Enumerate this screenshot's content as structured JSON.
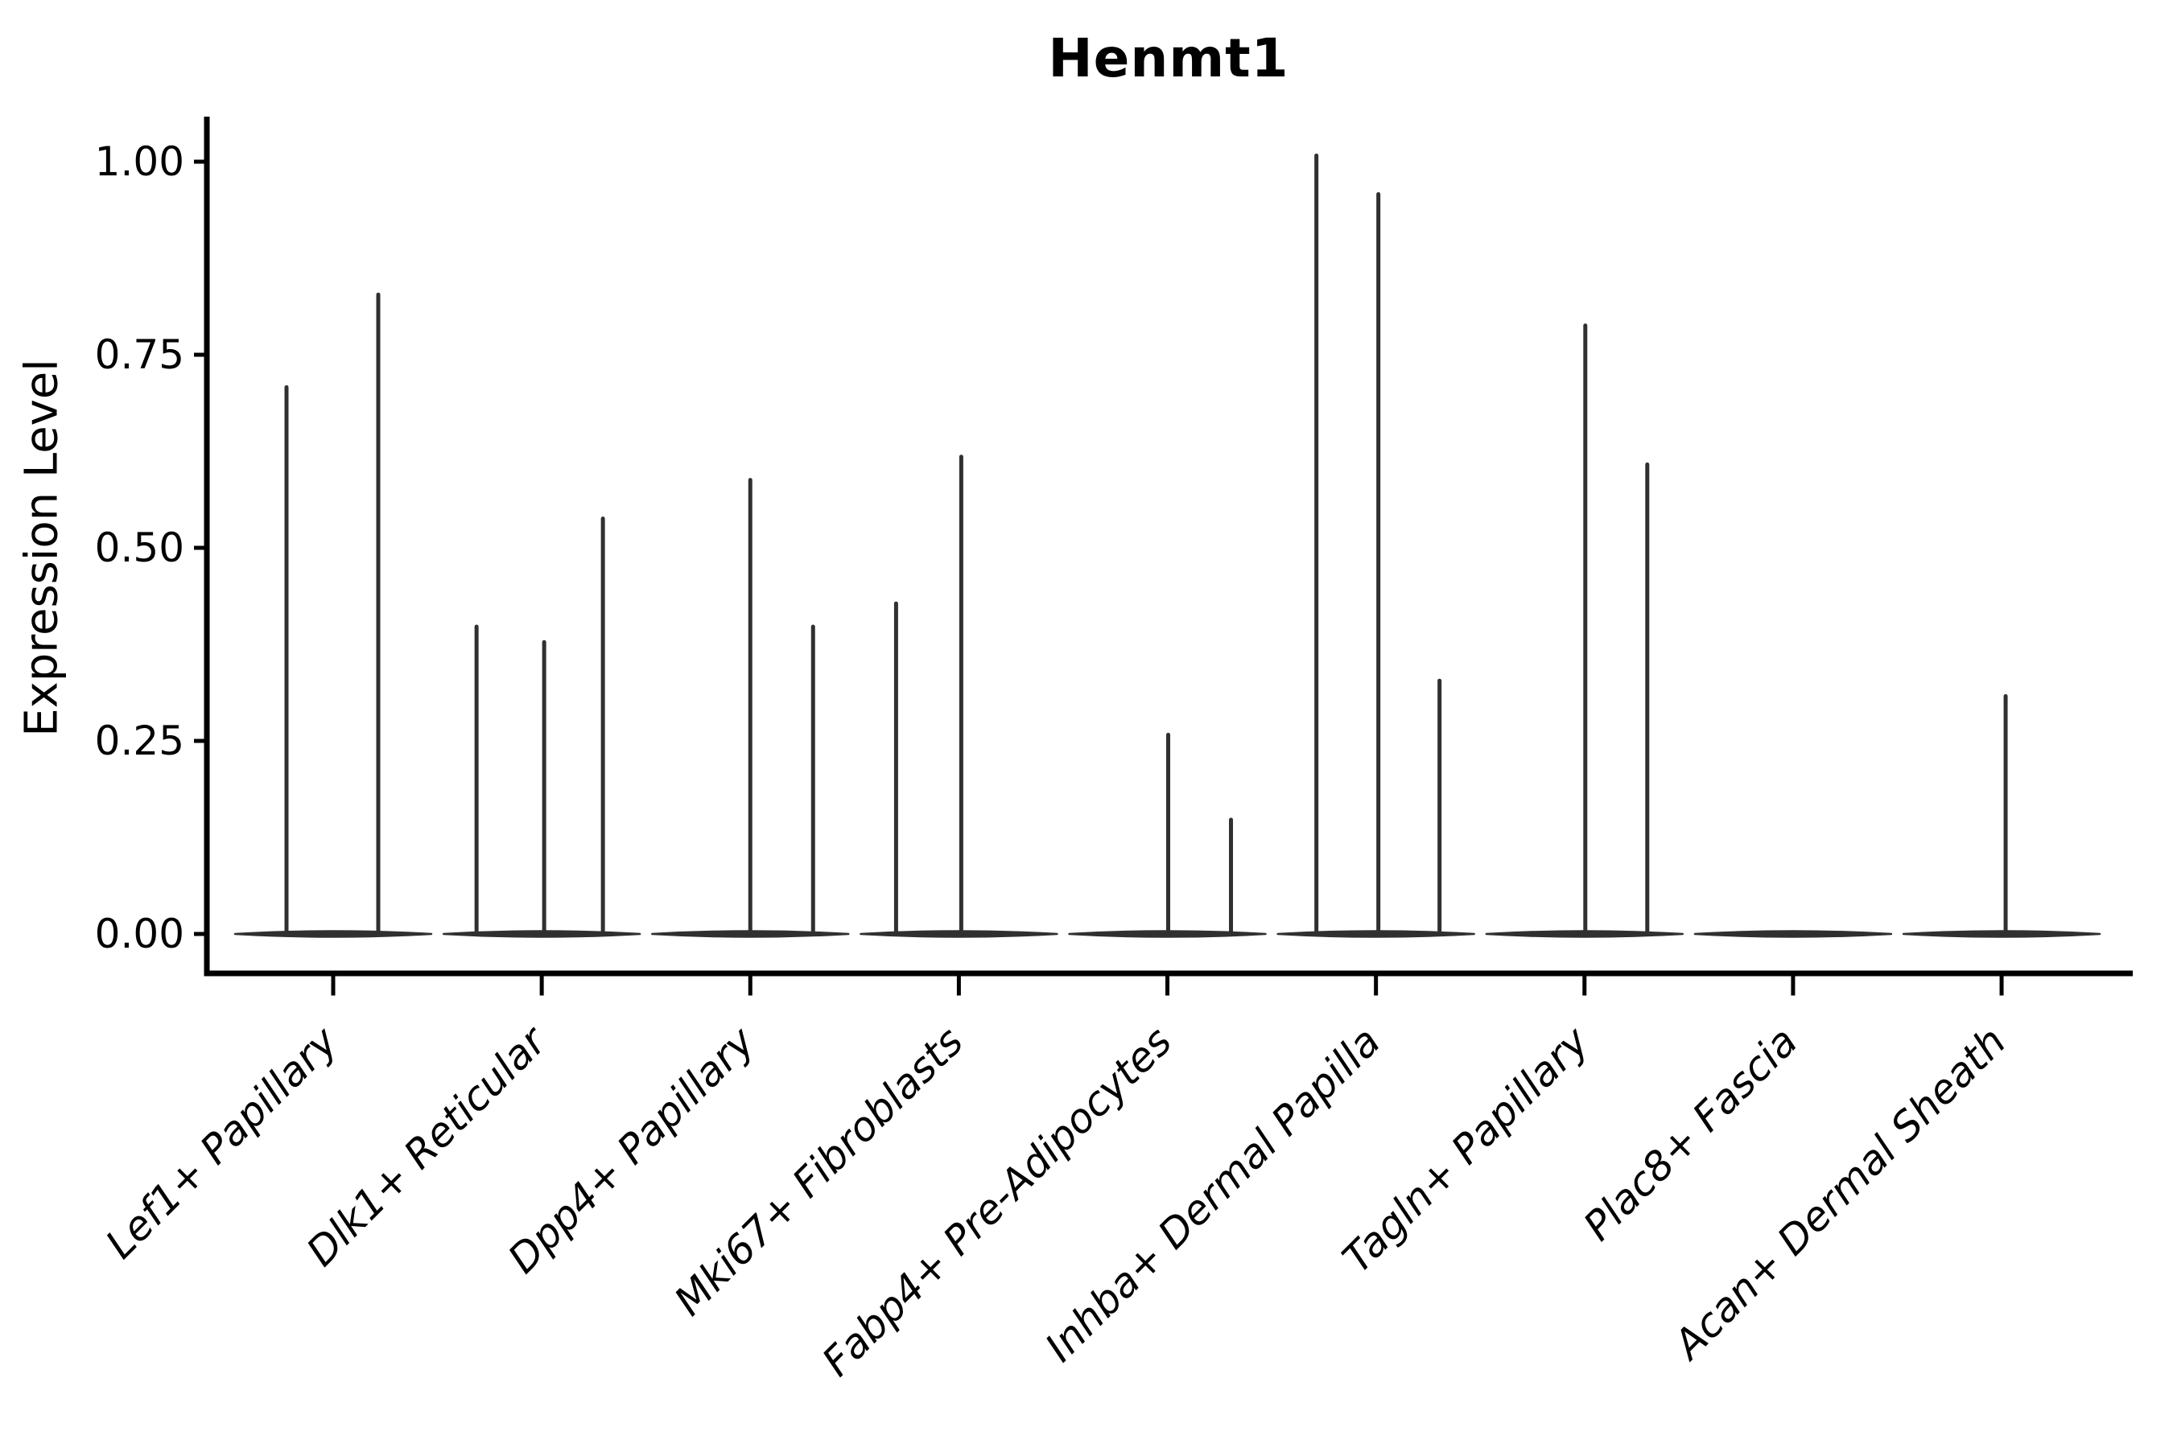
{
  "figure": {
    "background": "#ffffff",
    "axis_color": "#000000",
    "violin_color": "#303030"
  },
  "chart_data": {
    "type": "violin",
    "title": "Henmt1",
    "xlabel": "",
    "ylabel": "Expression Level",
    "ylim": [
      -0.06,
      1.06
    ],
    "grid": false,
    "legend": "none",
    "y_ticks": [
      {
        "value": 0.0,
        "label": "0.00"
      },
      {
        "value": 0.25,
        "label": "0.25"
      },
      {
        "value": 0.5,
        "label": "0.50"
      },
      {
        "value": 0.75,
        "label": "0.75"
      },
      {
        "value": 1.0,
        "label": "1.00"
      }
    ],
    "categories": [
      {
        "label": "Lef1+ Papillary",
        "violins": [
          {
            "offset": -58,
            "peak": 0.71
          },
          {
            "offset": 56,
            "peak": 0.83
          }
        ]
      },
      {
        "label": "Dlk1+ Reticular",
        "violins": [
          {
            "offset": -81,
            "peak": 0.4
          },
          {
            "offset": 3,
            "peak": 0.38
          },
          {
            "offset": 76,
            "peak": 0.54
          }
        ]
      },
      {
        "label": "Dpp4+ Papillary",
        "violins": [
          {
            "offset": 0,
            "peak": 0.59
          },
          {
            "offset": 78,
            "peak": 0.4
          }
        ]
      },
      {
        "label": "Mki67+ Fibroblasts",
        "violins": [
          {
            "offset": -78,
            "peak": 0.43
          },
          {
            "offset": 3,
            "peak": 0.62
          }
        ]
      },
      {
        "label": "Fabp4+ Pre-Adipocytes",
        "violins": [
          {
            "offset": 1,
            "peak": 0.26
          },
          {
            "offset": 79,
            "peak": 0.15
          }
        ]
      },
      {
        "label": "Inhba+ Dermal Papilla",
        "violins": [
          {
            "offset": -74,
            "peak": 1.01
          },
          {
            "offset": 3,
            "peak": 0.96
          },
          {
            "offset": 79,
            "peak": 0.33
          }
        ]
      },
      {
        "label": "Tagln+ Papillary",
        "violins": [
          {
            "offset": 1,
            "peak": 0.79
          },
          {
            "offset": 78,
            "peak": 0.61
          }
        ]
      },
      {
        "label": "Plac8+ Fascia",
        "violins": []
      },
      {
        "label": "Acan+ Dermal Sheath",
        "violins": [
          {
            "offset": 5,
            "peak": 0.31
          }
        ]
      }
    ]
  }
}
